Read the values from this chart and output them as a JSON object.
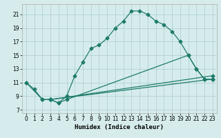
{
  "title": "",
  "xlabel": "Humidex (Indice chaleur)",
  "background_color": "#d6ecec",
  "grid_color": "#aacccc",
  "line_color": "#1e7b6a",
  "xlim": [
    -0.5,
    23.5
  ],
  "ylim": [
    6.5,
    22.5
  ],
  "xticks": [
    0,
    1,
    2,
    3,
    4,
    5,
    6,
    7,
    8,
    9,
    10,
    11,
    12,
    13,
    14,
    15,
    16,
    17,
    18,
    19,
    20,
    21,
    22,
    23
  ],
  "yticks": [
    7,
    9,
    11,
    13,
    15,
    17,
    19,
    21
  ],
  "series1_x": [
    0,
    1,
    2,
    3,
    4,
    5,
    6,
    7,
    8,
    9,
    10,
    11,
    12,
    13,
    14,
    15,
    16,
    17,
    18,
    19,
    20,
    21,
    22,
    23
  ],
  "series1_y": [
    11,
    10,
    8.5,
    8.5,
    8,
    9,
    12,
    14,
    16,
    16.5,
    17.5,
    19,
    20,
    21.5,
    21.5,
    21,
    20,
    19.5,
    18.5,
    17,
    15,
    13,
    11.5,
    11.5
  ],
  "series2_x": [
    0,
    2,
    3,
    4,
    5,
    20,
    21,
    22,
    23
  ],
  "series2_y": [
    11,
    8.5,
    8.5,
    8,
    8.5,
    15,
    13,
    11.5,
    11.5
  ],
  "series3_x": [
    3,
    23
  ],
  "series3_y": [
    8.5,
    12
  ],
  "series4_x": [
    3,
    23
  ],
  "series4_y": [
    8.5,
    11.5
  ],
  "marker_size": 2.5,
  "linewidth": 0.9,
  "tick_fontsize": 5.5,
  "xlabel_fontsize": 6.5
}
